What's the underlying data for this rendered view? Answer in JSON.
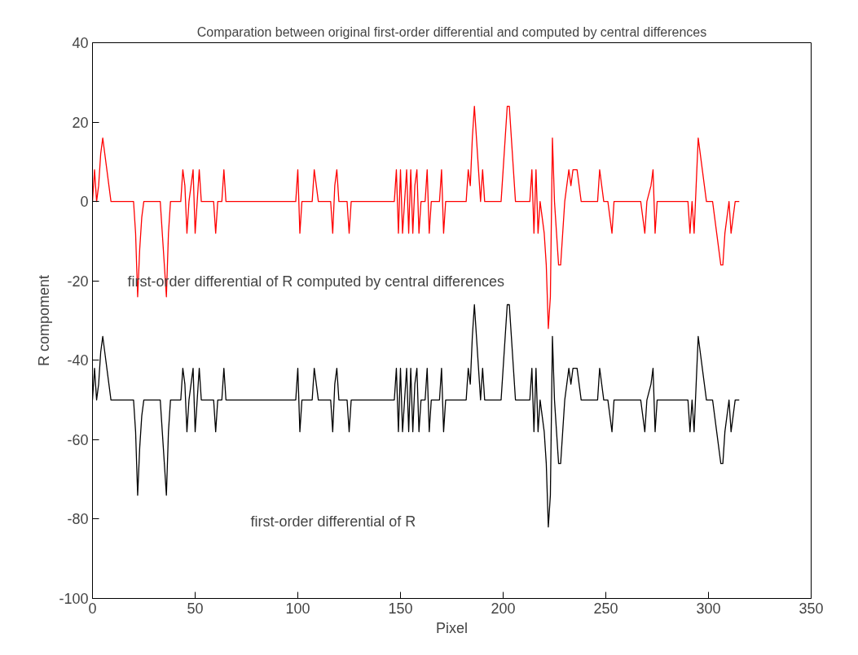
{
  "chart_data": {
    "type": "line",
    "title": "Comparation between original first-order differential and computed by central differences",
    "xlabel": "Pixel",
    "ylabel": "R compoment",
    "xlim": [
      0,
      350
    ],
    "xticks": [
      0,
      50,
      100,
      150,
      200,
      250,
      300,
      350
    ],
    "ylim": [
      -100,
      40
    ],
    "yticks": [
      -100,
      -80,
      -60,
      -40,
      -20,
      0,
      20,
      40
    ],
    "grid": false,
    "line_style": "solid",
    "marker": "none",
    "x": [
      0,
      1,
      2,
      3,
      4,
      5,
      6,
      7,
      8,
      9,
      20,
      21,
      22,
      23,
      24,
      25,
      33,
      34,
      35,
      36,
      37,
      38,
      43,
      44,
      45,
      46,
      47,
      48,
      49,
      50,
      51,
      52,
      53,
      59,
      60,
      61,
      63,
      64,
      65,
      99,
      100,
      101,
      102,
      107,
      108,
      109,
      110,
      116,
      117,
      118,
      119,
      120,
      124,
      125,
      126,
      147,
      148,
      149,
      150,
      151,
      152,
      153,
      154,
      155,
      156,
      157,
      158,
      159,
      160,
      162,
      163,
      164,
      165,
      169,
      170,
      171,
      172,
      182,
      183,
      184,
      185,
      186,
      187,
      188,
      189,
      190,
      191,
      199,
      200,
      201,
      202,
      203,
      204,
      205,
      206,
      213,
      214,
      215,
      216,
      217,
      218,
      219,
      220,
      221,
      222,
      223,
      224,
      225,
      226,
      227,
      228,
      229,
      230,
      231,
      232,
      233,
      234,
      235,
      236,
      237,
      238,
      246,
      247,
      248,
      249,
      251,
      252,
      253,
      254,
      267,
      268,
      269,
      270,
      272,
      273,
      274,
      275,
      290,
      291,
      292,
      293,
      294,
      295,
      296,
      297,
      298,
      299,
      302,
      303,
      304,
      305,
      306,
      307,
      308,
      309,
      310,
      311,
      312,
      313,
      315
    ],
    "series": [
      {
        "color": "#ff0000",
        "values": [
          0,
          8,
          0,
          4,
          12,
          16,
          12,
          8,
          4,
          0,
          0,
          -8,
          -24,
          -12,
          -4,
          0,
          0,
          -8,
          -16,
          -24,
          -8,
          0,
          0,
          8,
          4,
          -8,
          0,
          4,
          8,
          -8,
          0,
          8,
          0,
          0,
          -8,
          0,
          0,
          8,
          0,
          0,
          8,
          -8,
          0,
          0,
          8,
          4,
          0,
          0,
          -8,
          4,
          8,
          0,
          0,
          -8,
          0,
          0,
          8,
          -8,
          8,
          -8,
          0,
          8,
          -8,
          8,
          -8,
          4,
          8,
          -8,
          0,
          0,
          8,
          -8,
          0,
          0,
          8,
          -8,
          0,
          0,
          8,
          4,
          16,
          24,
          16,
          8,
          0,
          8,
          0,
          0,
          8,
          16,
          24,
          24,
          16,
          8,
          0,
          0,
          8,
          -8,
          8,
          -8,
          0,
          -4,
          -8,
          -16,
          -32,
          -24,
          16,
          0,
          -8,
          -16,
          -16,
          -8,
          0,
          4,
          8,
          4,
          8,
          8,
          8,
          4,
          0,
          0,
          8,
          4,
          0,
          0,
          -4,
          -8,
          0,
          0,
          -4,
          -8,
          0,
          4,
          8,
          -8,
          0,
          0,
          -8,
          0,
          -8,
          4,
          16,
          12,
          8,
          4,
          0,
          0,
          -4,
          -8,
          -12,
          -16,
          -16,
          -8,
          -4,
          0,
          -8,
          -4,
          0,
          0
        ]
      },
      {
        "color": "#000000",
        "values": [
          -50,
          -42,
          -50,
          -46,
          -38,
          -34,
          -38,
          -42,
          -46,
          -50,
          -50,
          -58,
          -74,
          -62,
          -54,
          -50,
          -50,
          -58,
          -66,
          -74,
          -58,
          -50,
          -50,
          -42,
          -46,
          -58,
          -50,
          -46,
          -42,
          -58,
          -50,
          -42,
          -50,
          -50,
          -58,
          -50,
          -50,
          -42,
          -50,
          -50,
          -42,
          -58,
          -50,
          -50,
          -42,
          -46,
          -50,
          -50,
          -58,
          -46,
          -42,
          -50,
          -50,
          -58,
          -50,
          -50,
          -42,
          -58,
          -42,
          -58,
          -50,
          -42,
          -58,
          -42,
          -58,
          -46,
          -42,
          -58,
          -50,
          -50,
          -42,
          -58,
          -50,
          -50,
          -42,
          -58,
          -50,
          -50,
          -42,
          -46,
          -34,
          -26,
          -34,
          -42,
          -50,
          -42,
          -50,
          -50,
          -42,
          -34,
          -26,
          -26,
          -34,
          -42,
          -50,
          -50,
          -42,
          -58,
          -42,
          -58,
          -50,
          -54,
          -58,
          -66,
          -82,
          -74,
          -34,
          -50,
          -58,
          -66,
          -66,
          -58,
          -50,
          -46,
          -42,
          -46,
          -42,
          -42,
          -42,
          -46,
          -50,
          -50,
          -42,
          -46,
          -50,
          -50,
          -54,
          -58,
          -50,
          -50,
          -54,
          -58,
          -50,
          -46,
          -42,
          -58,
          -50,
          -50,
          -58,
          -50,
          -58,
          -46,
          -34,
          -38,
          -42,
          -46,
          -50,
          -50,
          -54,
          -58,
          -62,
          -66,
          -66,
          -58,
          -54,
          -50,
          -58,
          -54,
          -50,
          -50
        ]
      }
    ],
    "annotations": [
      "first-order differential of R computed by central differences",
      "first-order differential of R"
    ]
  }
}
